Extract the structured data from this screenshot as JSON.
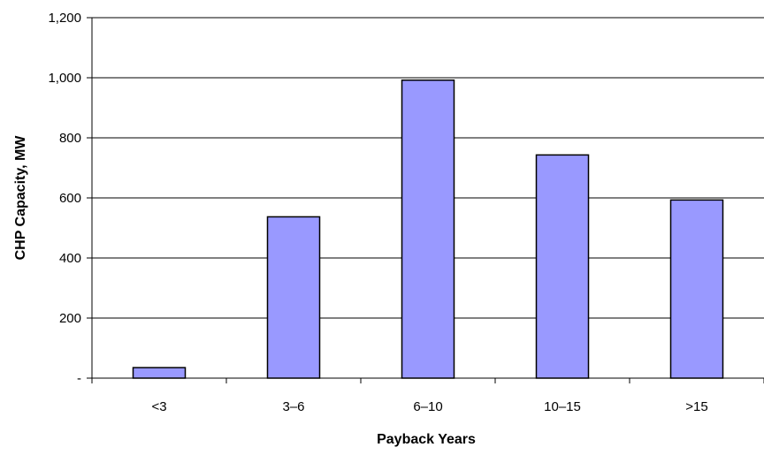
{
  "chart_data": {
    "type": "bar",
    "title": "",
    "xlabel": "Payback Years",
    "ylabel": "CHP Capacity, MW",
    "categories": [
      "<3",
      "3–6",
      "6–10",
      "10–15",
      ">15"
    ],
    "values": [
      35,
      537,
      992,
      743,
      593
    ],
    "ylim": [
      0,
      1200
    ],
    "yticks": [
      0,
      200,
      400,
      600,
      800,
      1000,
      1200
    ],
    "ytick_labels": [
      "-",
      "200",
      "400",
      "600",
      "800",
      "1,000",
      "1,200"
    ],
    "grid": "horizontal",
    "legend": "none",
    "colors": {
      "bar_fill": "#9999ff",
      "bar_stroke": "#000000",
      "grid": "#000000"
    }
  }
}
